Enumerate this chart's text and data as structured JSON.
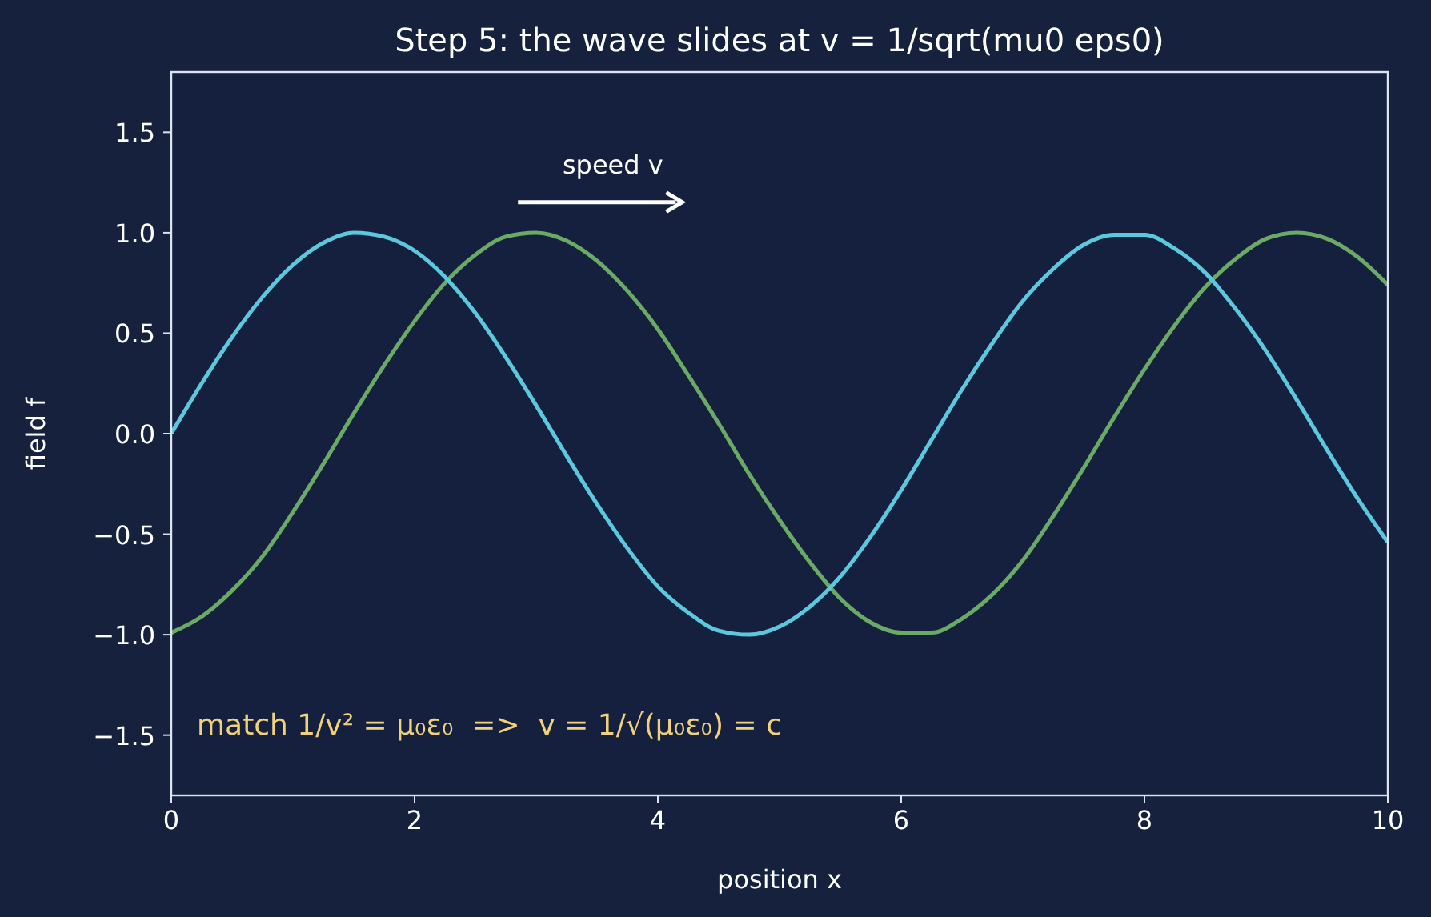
{
  "chart_data": {
    "type": "line",
    "title": "Step 5: the wave slides at v = 1/sqrt(mu0 eps0)",
    "xlabel": "position x",
    "ylabel": "field f",
    "x": [
      0,
      0.25,
      0.5,
      0.75,
      1,
      1.25,
      1.5,
      1.75,
      2,
      2.25,
      2.5,
      2.75,
      3,
      3.25,
      3.5,
      3.75,
      4,
      4.25,
      4.5,
      4.75,
      5,
      5.25,
      5.5,
      5.75,
      6,
      6.25,
      6.5,
      6.75,
      7,
      7.25,
      7.5,
      7.75,
      8,
      8.25,
      8.5,
      8.75,
      9,
      9.25,
      9.5,
      9.75,
      10
    ],
    "series": [
      {
        "color": "#6aaa64",
        "values": [
          -0.99,
          -0.91,
          -0.78,
          -0.61,
          -0.39,
          -0.15,
          0.1,
          0.34,
          0.56,
          0.75,
          0.89,
          0.98,
          1.0,
          0.96,
          0.86,
          0.71,
          0.52,
          0.29,
          0.05,
          -0.2,
          -0.43,
          -0.64,
          -0.82,
          -0.94,
          -0.99,
          -0.99,
          -0.92,
          -0.8,
          -0.63,
          -0.41,
          -0.17,
          0.08,
          0.32,
          0.54,
          0.73,
          0.87,
          0.97,
          1.0,
          0.97,
          0.88,
          0.74
        ]
      },
      {
        "color": "#5bc8de",
        "values": [
          0.0,
          0.25,
          0.48,
          0.68,
          0.84,
          0.95,
          1.0,
          0.98,
          0.91,
          0.78,
          0.6,
          0.38,
          0.14,
          -0.11,
          -0.35,
          -0.57,
          -0.76,
          -0.89,
          -0.98,
          -1.0,
          -0.96,
          -0.86,
          -0.71,
          -0.51,
          -0.28,
          -0.03,
          0.22,
          0.45,
          0.66,
          0.82,
          0.94,
          0.99,
          0.99,
          0.92,
          0.8,
          0.62,
          0.41,
          0.17,
          -0.08,
          -0.32,
          -0.54
        ]
      }
    ],
    "xlim": [
      0,
      10
    ],
    "xticks": [
      0,
      2,
      4,
      6,
      8,
      10
    ],
    "ylim": [
      -1.8,
      1.8
    ],
    "yticks": [
      {
        "value": -1.5,
        "label": "−1.5"
      },
      {
        "value": -1,
        "label": "−1.0"
      },
      {
        "value": -0.5,
        "label": "−0.5"
      },
      {
        "value": 0,
        "label": "0.0"
      },
      {
        "value": 0.5,
        "label": "0.5"
      },
      {
        "value": 1,
        "label": "1.0"
      },
      {
        "value": 1.5,
        "label": "1.5"
      }
    ],
    "annotations": [
      "speed v",
      "match 1/v² = μ₀ε₀  =>  v = 1/√(μ₀ε₀) = c"
    ],
    "grid": false,
    "line_style": "solid",
    "marker": "none"
  }
}
